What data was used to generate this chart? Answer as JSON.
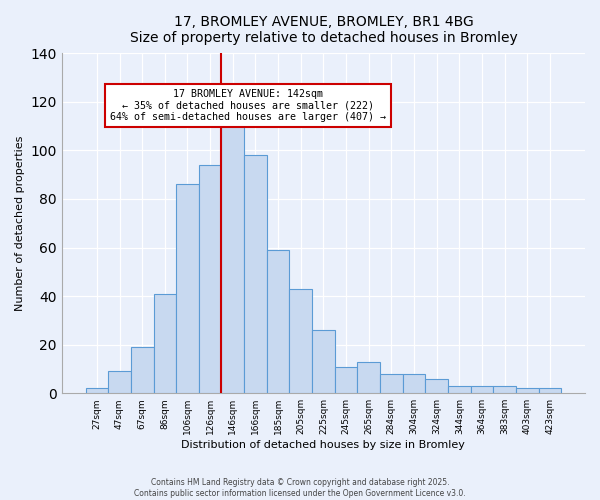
{
  "title": "17, BROMLEY AVENUE, BROMLEY, BR1 4BG",
  "subtitle": "Size of property relative to detached houses in Bromley",
  "xlabel": "Distribution of detached houses by size in Bromley",
  "ylabel": "Number of detached properties",
  "bar_labels": [
    "27sqm",
    "47sqm",
    "67sqm",
    "86sqm",
    "106sqm",
    "126sqm",
    "146sqm",
    "166sqm",
    "185sqm",
    "205sqm",
    "225sqm",
    "245sqm",
    "265sqm",
    "284sqm",
    "304sqm",
    "324sqm",
    "344sqm",
    "364sqm",
    "383sqm",
    "403sqm",
    "423sqm"
  ],
  "bar_heights": [
    2,
    9,
    19,
    41,
    86,
    94,
    111,
    98,
    59,
    43,
    26,
    11,
    13,
    8,
    8,
    6,
    3,
    3,
    3,
    2,
    2
  ],
  "bar_color": "#c8d9f0",
  "bar_edge_color": "#5b9bd5",
  "vline_x": 5.5,
  "vline_color": "#cc0000",
  "annotation_title": "17 BROMLEY AVENUE: 142sqm",
  "annotation_line1": "← 35% of detached houses are smaller (222)",
  "annotation_line2": "64% of semi-detached houses are larger (407) →",
  "annotation_box_color": "#ffffff",
  "annotation_box_edge": "#cc0000",
  "ylim": [
    0,
    140
  ],
  "yticks": [
    0,
    20,
    40,
    60,
    80,
    100,
    120,
    140
  ],
  "footer1": "Contains HM Land Registry data © Crown copyright and database right 2025.",
  "footer2": "Contains public sector information licensed under the Open Government Licence v3.0.",
  "bg_color": "#eaf0fb",
  "plot_bg_color": "#eaf0fb"
}
